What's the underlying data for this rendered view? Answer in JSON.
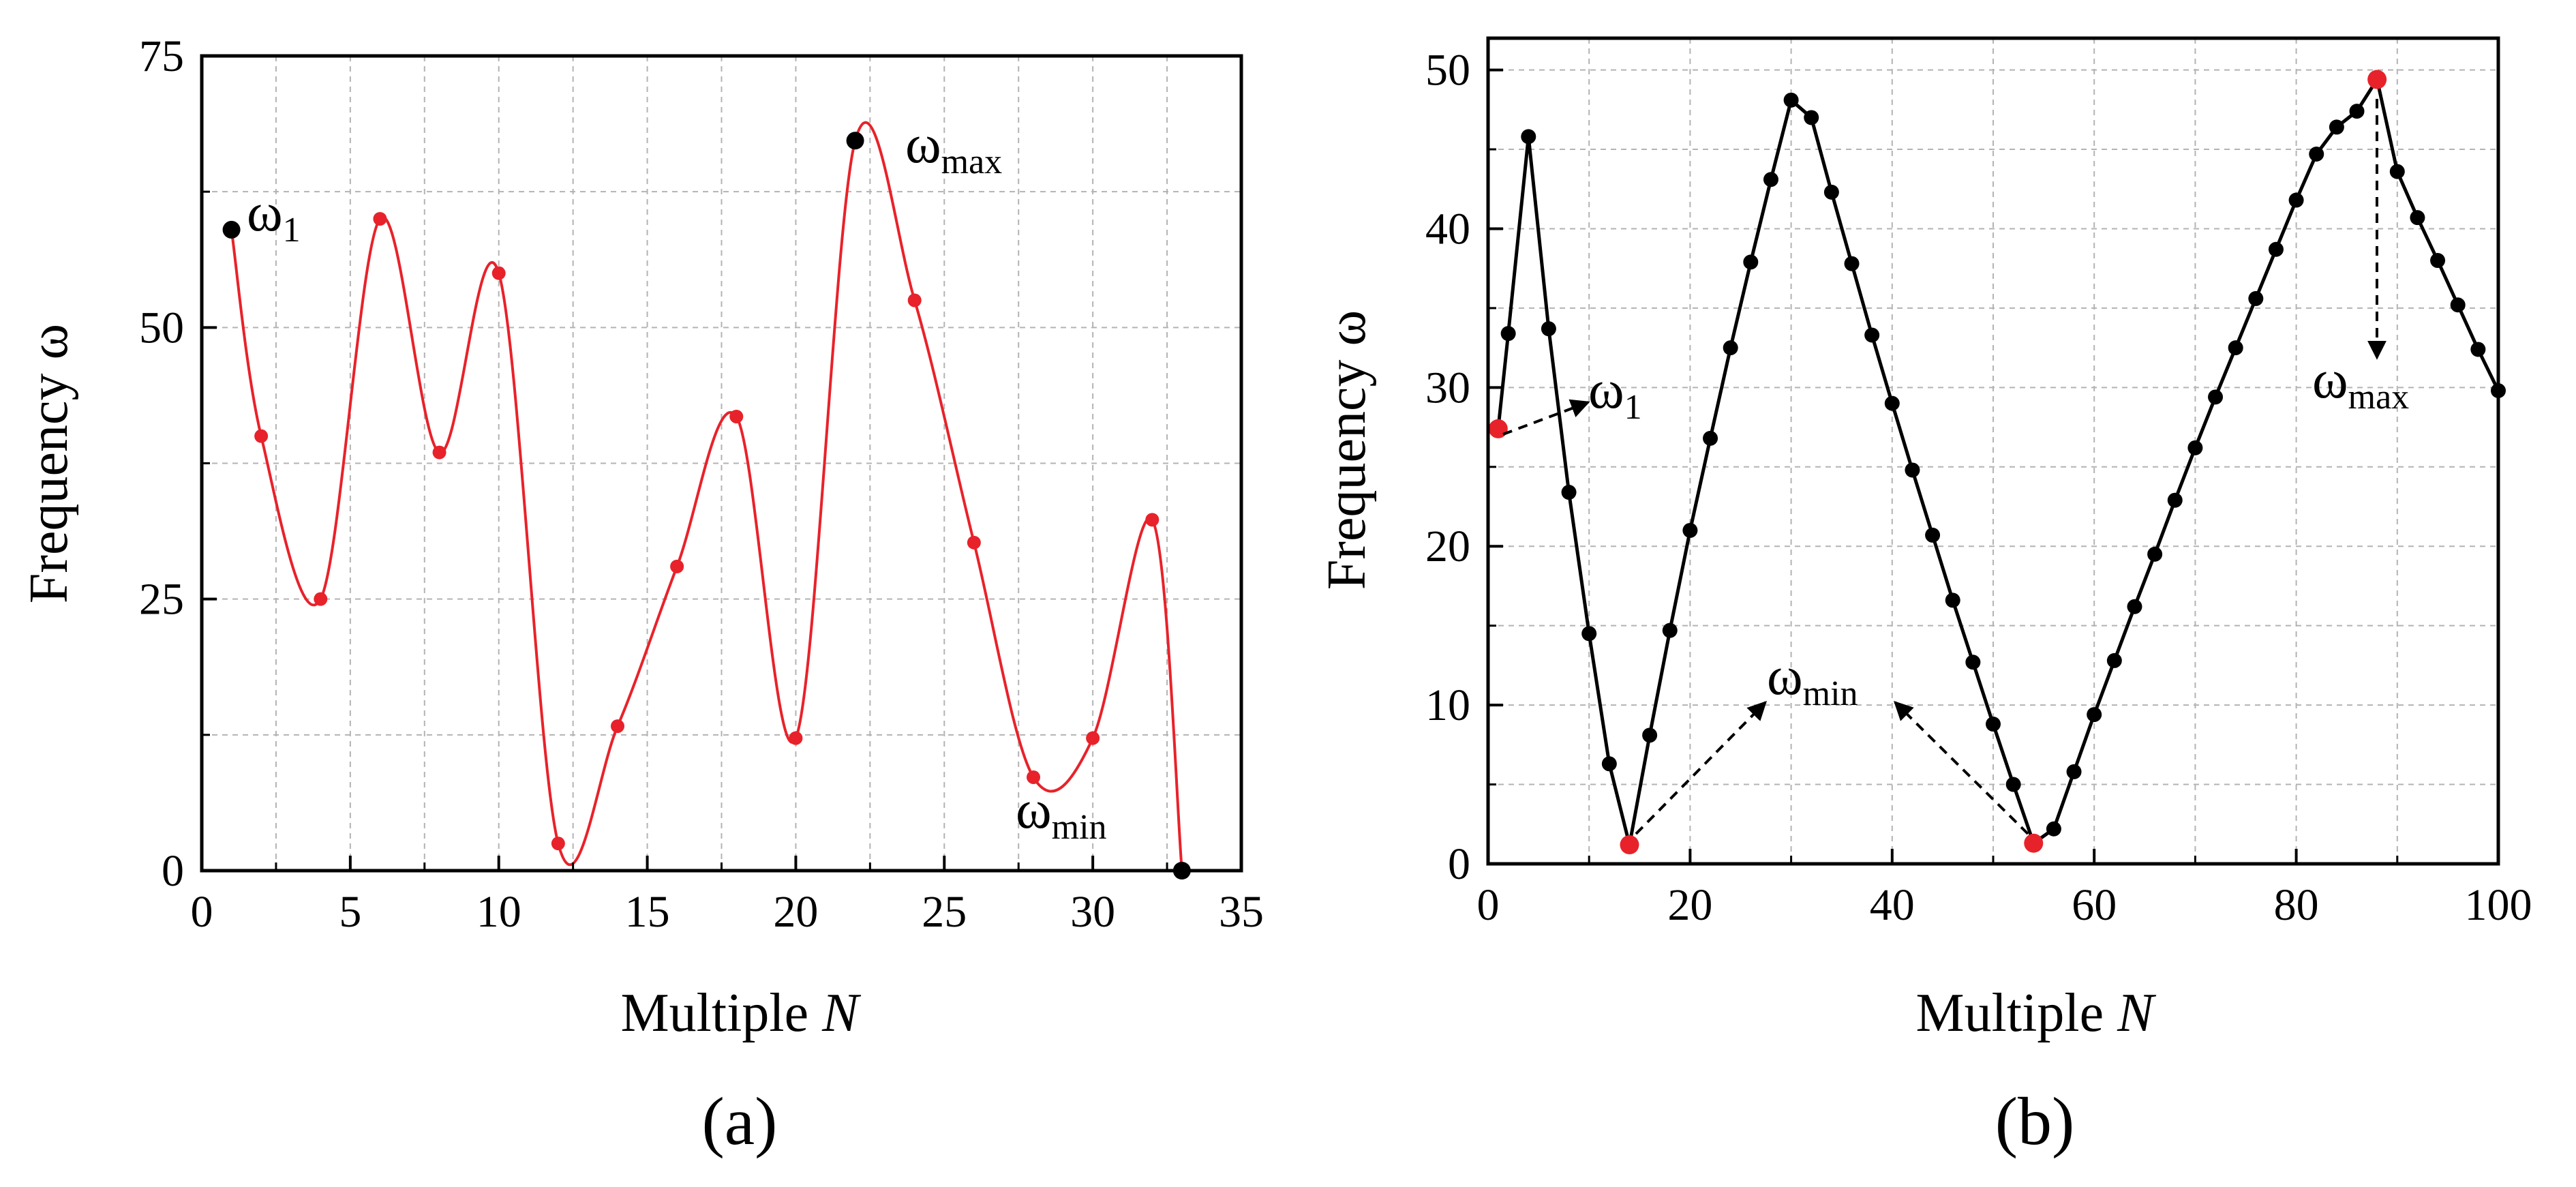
{
  "chart_data": [
    {
      "type": "line",
      "panel": "(a)",
      "caption": "(a)",
      "xlabel": "Multiple",
      "xlabel_var": "N",
      "ylabel": "Frequency ω",
      "xlim": [
        0,
        35
      ],
      "ylim": [
        0,
        75
      ],
      "xticks": [
        0,
        5,
        10,
        15,
        20,
        25,
        30,
        35
      ],
      "yticks": [
        0,
        25,
        50,
        75
      ],
      "grid": true,
      "series": [
        {
          "name": "frequency",
          "color": "#e8222a",
          "x": [
            1,
            2,
            4,
            6,
            8,
            10,
            12,
            14,
            16,
            18,
            20,
            22,
            24,
            26,
            28,
            30,
            32,
            33
          ],
          "y": [
            59,
            40,
            25,
            60,
            38.5,
            55,
            2.5,
            13.3,
            28,
            41.8,
            12.2,
            67.2,
            52.5,
            30.2,
            8.6,
            12.2,
            32.3,
            0
          ]
        }
      ],
      "highlight_points": [
        {
          "x": 1,
          "y": 59,
          "color": "#000000"
        },
        {
          "x": 22,
          "y": 67.2,
          "color": "#000000"
        },
        {
          "x": 33,
          "y": 0,
          "color": "#000000"
        }
      ],
      "annotations": [
        {
          "symbol": "ω",
          "sub": "1",
          "x": 1,
          "y": 59
        },
        {
          "symbol": "ω",
          "sub": "max",
          "x": 22,
          "y": 67.2
        },
        {
          "symbol": "ω",
          "sub": "min",
          "x": 33,
          "y": 0
        }
      ]
    },
    {
      "type": "line",
      "panel": "(b)",
      "caption": "(b)",
      "xlabel": "Multiple",
      "xlabel_var": "N",
      "ylabel": "Frequency ω",
      "xlim": [
        0,
        100
      ],
      "ylim": [
        0,
        52
      ],
      "xticks": [
        0,
        20,
        40,
        60,
        80,
        100
      ],
      "yticks": [
        0,
        10,
        20,
        30,
        40,
        50
      ],
      "grid": true,
      "series": [
        {
          "name": "frequency",
          "color": "#000000",
          "x": [
            1,
            2,
            4,
            6,
            8,
            10,
            12,
            14,
            16,
            18,
            20,
            22,
            24,
            26,
            28,
            30,
            32,
            34,
            36,
            38,
            40,
            42,
            44,
            46,
            48,
            50,
            52,
            54,
            56,
            58,
            60,
            62,
            64,
            66,
            68,
            70,
            72,
            74,
            76,
            78,
            80,
            82,
            84,
            86,
            88,
            90,
            92,
            94,
            96,
            98,
            100
          ],
          "y": [
            27.4,
            33.4,
            45.8,
            33.7,
            23.4,
            14.5,
            6.3,
            1.2,
            8.1,
            14.7,
            21.0,
            26.8,
            32.5,
            37.9,
            43.1,
            48.1,
            47.0,
            42.3,
            37.8,
            33.3,
            29.0,
            24.8,
            20.7,
            16.6,
            12.7,
            8.8,
            5.0,
            1.3,
            2.2,
            5.8,
            9.4,
            12.8,
            16.2,
            19.5,
            22.9,
            26.2,
            29.4,
            32.5,
            35.6,
            38.7,
            41.8,
            44.7,
            46.4,
            47.4,
            49.4,
            43.6,
            40.7,
            38.0,
            35.2,
            32.4,
            29.8
          ]
        }
      ],
      "highlight_points": [
        {
          "x": 1,
          "y": 27.4,
          "color": "#e8222a"
        },
        {
          "x": 14,
          "y": 1.2,
          "color": "#e8222a"
        },
        {
          "x": 54,
          "y": 1.3,
          "color": "#e8222a"
        },
        {
          "x": 88,
          "y": 49.4,
          "color": "#e8222a"
        }
      ],
      "annotations": [
        {
          "symbol": "ω",
          "sub": "1",
          "x": 1,
          "y": 27.4
        },
        {
          "symbol": "ω",
          "sub": "min",
          "x": 14,
          "y": 1.2
        },
        {
          "symbol": "ω",
          "sub": "max",
          "x": 88,
          "y": 49.4
        }
      ]
    }
  ]
}
